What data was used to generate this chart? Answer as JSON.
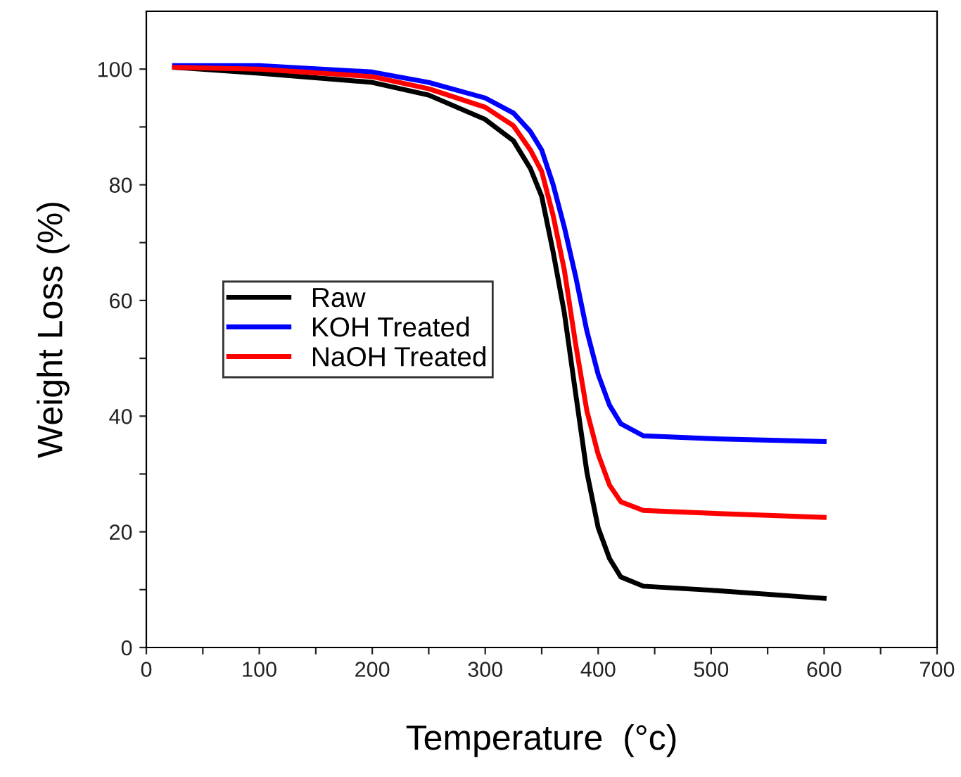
{
  "chart_data": {
    "type": "line",
    "xlabel": "Temperature  (°c)",
    "ylabel": "Weight Loss (%)",
    "xlim": [
      0,
      700
    ],
    "ylim": [
      0,
      110
    ],
    "xticks": [
      0,
      {
        "value": 50,
        "label": null
      },
      100,
      {
        "value": 150,
        "label": null
      },
      200,
      {
        "value": 250,
        "label": null
      },
      300,
      {
        "value": 350,
        "label": null
      },
      400,
      {
        "value": 450,
        "label": null
      },
      500,
      {
        "value": 550,
        "label": null
      },
      600,
      {
        "value": 650,
        "label": null
      },
      700
    ],
    "yticks": [
      0,
      {
        "value": 10,
        "label": null
      },
      20,
      {
        "value": 30,
        "label": null
      },
      40,
      {
        "value": 50,
        "label": null
      },
      60,
      {
        "value": 70,
        "label": null
      },
      80,
      {
        "value": 90,
        "label": null
      },
      100
    ],
    "grid": false,
    "legend": "left",
    "marker": "none",
    "line_style": "solid",
    "x": [
      25,
      100,
      200,
      250,
      300,
      325,
      340,
      350,
      360,
      370,
      380,
      390,
      400,
      410,
      420,
      440,
      500,
      600
    ],
    "series": [
      {
        "name": "Raw",
        "color": "#000000",
        "values": [
          100.3,
          99.3,
          97.7,
          95.5,
          91.3,
          87.6,
          82.8,
          78,
          68.5,
          57.9,
          44,
          30.3,
          20.7,
          15.4,
          12.2,
          10.6,
          9.9,
          8.5
        ]
      },
      {
        "name": "KOH Treated",
        "color": "#0000ff",
        "values": [
          100.6,
          100.6,
          99.5,
          97.7,
          95,
          92.4,
          89.2,
          86,
          80.1,
          72.7,
          64.2,
          54.7,
          47.2,
          41.9,
          38.7,
          36.6,
          36.1,
          35.6
        ]
      },
      {
        "name": "NaOH Treated",
        "color": "#ff0000",
        "values": [
          100.3,
          100,
          98.7,
          96.6,
          93.4,
          90.2,
          86,
          82.3,
          74.8,
          65.3,
          52.5,
          40.9,
          33.4,
          28.1,
          25.2,
          23.7,
          23.2,
          22.5
        ]
      }
    ]
  }
}
